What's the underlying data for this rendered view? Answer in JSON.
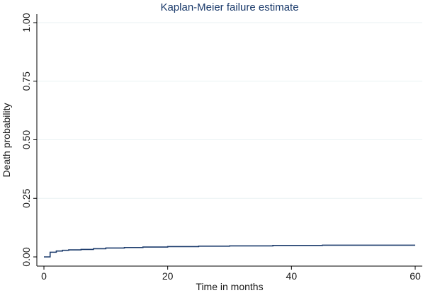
{
  "chart_data": {
    "type": "line",
    "title": "Kaplan-Meier failure estimate",
    "xlabel": "Time in months",
    "ylabel": "Death probability",
    "xlim": [
      0,
      60
    ],
    "ylim": [
      0,
      1
    ],
    "x_ticks": [
      0,
      20,
      40,
      60
    ],
    "x_tick_labels": [
      "0",
      "20",
      "40",
      "60"
    ],
    "y_ticks": [
      0,
      0.25,
      0.5,
      0.75,
      1
    ],
    "y_tick_labels": [
      "0.00",
      "0.25",
      "0.50",
      "0.75",
      "1.00"
    ],
    "grid": true,
    "legend": "none",
    "line_color": "#1a3a6b",
    "series": [
      {
        "step": true,
        "x": [
          0,
          1,
          2,
          3,
          4,
          6,
          8,
          10,
          13,
          16,
          20,
          25,
          30,
          37,
          45,
          60
        ],
        "y": [
          0.0,
          0.02,
          0.025,
          0.028,
          0.03,
          0.032,
          0.035,
          0.038,
          0.04,
          0.042,
          0.044,
          0.046,
          0.047,
          0.049,
          0.05,
          0.05
        ]
      }
    ]
  }
}
